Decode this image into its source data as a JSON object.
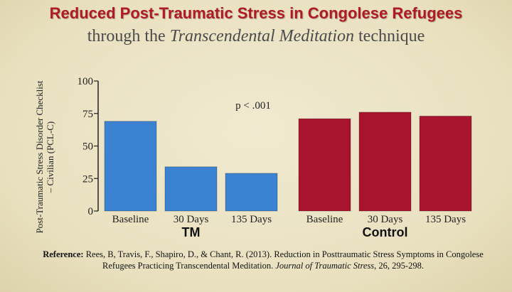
{
  "header": {
    "title": "Reduced Post-Traumatic Stress in Congolese Refugees",
    "subtitle_pre": "through the ",
    "subtitle_em": "Transcendental Meditation",
    "subtitle_post": " technique"
  },
  "reference": {
    "label": "Reference:",
    "text": " Rees, B, Travis, F., Shapiro, D., & Chant, R. (2013). Reduction in Posttraumatic Stress Symptoms in Congolese Refugees Practicing Transcendental Meditation. ",
    "journal": "Journal of Traumatic Stress",
    "tail": ", 26, 295-298."
  },
  "chart_data": {
    "type": "bar",
    "ylabel": "Post-Traumatic Stress Disorder Checklist – Civilian (PCL-C)",
    "ylim": [
      0,
      100
    ],
    "yticks": [
      0,
      25,
      50,
      75,
      100
    ],
    "annotation": "p < .001",
    "groups": [
      {
        "name": "TM",
        "color": "#3c82d2",
        "categories": [
          "Baseline",
          "30 Days",
          "135  Days"
        ],
        "values": [
          69,
          34,
          29
        ]
      },
      {
        "name": "Control",
        "color": "#a8142e",
        "categories": [
          "Baseline",
          "30 Days",
          "135  Days"
        ],
        "values": [
          71,
          76,
          73
        ]
      }
    ]
  }
}
